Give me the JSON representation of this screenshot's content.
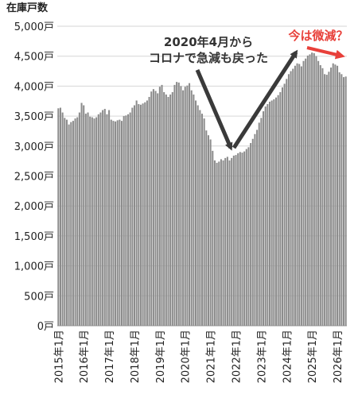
{
  "chart_data": {
    "type": "bar",
    "ylabel": "在庫戸数",
    "ylim": [
      0,
      5000
    ],
    "grid": true,
    "y_ticks": [
      {
        "value": 0,
        "label": "0戸"
      },
      {
        "value": 500,
        "label": "500戸"
      },
      {
        "value": 1000,
        "label": "1,000戸"
      },
      {
        "value": 1500,
        "label": "1,500戸"
      },
      {
        "value": 2000,
        "label": "2,000戸"
      },
      {
        "value": 2500,
        "label": "2,500戸"
      },
      {
        "value": 3000,
        "label": "3,000戸"
      },
      {
        "value": 3500,
        "label": "3,500戸"
      },
      {
        "value": 4000,
        "label": "4,000戸"
      },
      {
        "value": 4500,
        "label": "4,500戸"
      },
      {
        "value": 5000,
        "label": "5,000戸"
      }
    ],
    "x_tick_labels": [
      "2015年1月",
      "2016年1月",
      "2017年1月",
      "2018年1月",
      "2019年1月",
      "2020年1月",
      "2021年1月",
      "2022年1月",
      "2023年1月",
      "2024年1月",
      "2025年1月",
      "2026年1月"
    ],
    "start_period": "2015年1月",
    "end_period": "2026年1月",
    "values": [
      3630,
      3640,
      3560,
      3470,
      3440,
      3360,
      3400,
      3420,
      3460,
      3480,
      3560,
      3720,
      3680,
      3540,
      3560,
      3490,
      3480,
      3460,
      3480,
      3530,
      3560,
      3600,
      3620,
      3530,
      3600,
      3440,
      3420,
      3410,
      3430,
      3440,
      3420,
      3500,
      3510,
      3530,
      3560,
      3640,
      3680,
      3760,
      3700,
      3690,
      3710,
      3730,
      3760,
      3820,
      3910,
      3950,
      3920,
      3880,
      3990,
      4020,
      3900,
      3860,
      3820,
      3860,
      3900,
      4020,
      4070,
      4060,
      4000,
      3930,
      3990,
      4010,
      4050,
      3930,
      3860,
      3760,
      3680,
      3600,
      3540,
      3460,
      3260,
      3180,
      3110,
      2920,
      2760,
      2720,
      2740,
      2780,
      2760,
      2800,
      2820,
      2760,
      2800,
      2840,
      2850,
      2880,
      2900,
      2890,
      2910,
      2950,
      2980,
      3050,
      3120,
      3200,
      3270,
      3390,
      3470,
      3580,
      3660,
      3700,
      3740,
      3760,
      3780,
      3810,
      3850,
      3900,
      3980,
      4040,
      4120,
      4200,
      4250,
      4290,
      4340,
      4380,
      4370,
      4330,
      4420,
      4460,
      4510,
      4530,
      4560,
      4550,
      4500,
      4420,
      4350,
      4300,
      4200,
      4190,
      4240,
      4310,
      4380,
      4360,
      4340,
      4230,
      4200,
      4150,
      4160
    ],
    "annotations": [
      {
        "text_line1": "2020年4月から",
        "text_line2": "コロナで急減も戻った",
        "color": "#333333"
      },
      {
        "text": "今は微減？",
        "color": "#e8403a"
      }
    ],
    "colors": {
      "bar": "#8c8c8c",
      "bar_stroke": "#ffffff",
      "grid": "#d6d6d6",
      "arrow_dark": "#3a3a3a",
      "arrow_red": "#e8403a",
      "text": "#222222"
    }
  }
}
